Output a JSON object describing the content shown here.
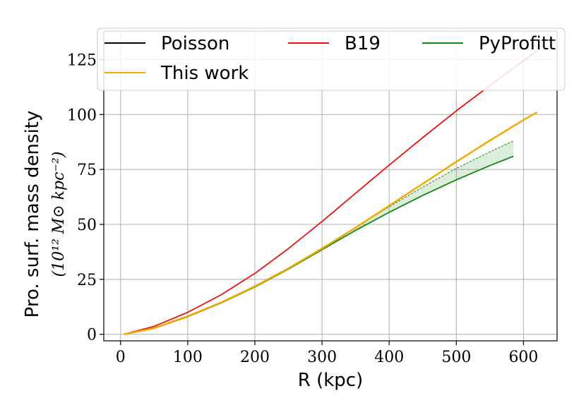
{
  "chart_data": {
    "type": "line",
    "xlabel": "R (kpc)",
    "ylabel_line1": "Pro. surf. mass density",
    "ylabel_line2": "(10¹² M⊙ kpc⁻²)",
    "xlim": [
      -25,
      650
    ],
    "ylim": [
      -3,
      138
    ],
    "xticks": [
      0,
      100,
      200,
      300,
      400,
      500,
      600
    ],
    "yticks": [
      0,
      25,
      50,
      75,
      100,
      125
    ],
    "grid": true,
    "legend_position": "top",
    "series": [
      {
        "name": "Poisson",
        "color": "#000000",
        "x": [
          5,
          50,
          100,
          150,
          200,
          250,
          300,
          350,
          400,
          450,
          500,
          550,
          600,
          620
        ],
        "y": [
          0,
          2.8,
          8.2,
          14.5,
          21.8,
          30.0,
          39.0,
          48.5,
          58.5,
          68.5,
          78.5,
          88.2,
          97.5,
          101
        ]
      },
      {
        "name": "B19",
        "color": "#ee1111",
        "x": [
          5,
          50,
          100,
          150,
          200,
          250,
          300,
          350,
          400,
          450,
          500,
          550,
          600,
          620
        ],
        "y": [
          0,
          3.6,
          10.0,
          18.0,
          27.7,
          39.0,
          51.3,
          64.2,
          77.0,
          89.5,
          101.7,
          113.2,
          124.5,
          129
        ]
      },
      {
        "name": "PyProfitt",
        "color": "#118811",
        "x": [
          5,
          50,
          100,
          150,
          200,
          250,
          300,
          350,
          400,
          450,
          500,
          550,
          585
        ],
        "y": [
          0,
          2.7,
          8.0,
          14.3,
          21.5,
          29.7,
          38.5,
          47.3,
          55.5,
          63.2,
          70.3,
          76.8,
          81
        ],
        "band_upper": [
          0,
          2.8,
          8.1,
          14.5,
          21.9,
          30.2,
          39.3,
          48.7,
          58.0,
          67.0,
          75.5,
          83.0,
          88
        ]
      },
      {
        "name": "This work",
        "color": "#f5a800",
        "x": [
          5,
          50,
          100,
          150,
          200,
          250,
          300,
          350,
          400,
          450,
          500,
          550,
          600,
          620
        ],
        "y": [
          0,
          2.8,
          8.2,
          14.5,
          21.8,
          30.0,
          39.0,
          48.5,
          58.5,
          68.5,
          78.5,
          88.2,
          97.5,
          101
        ]
      }
    ]
  }
}
